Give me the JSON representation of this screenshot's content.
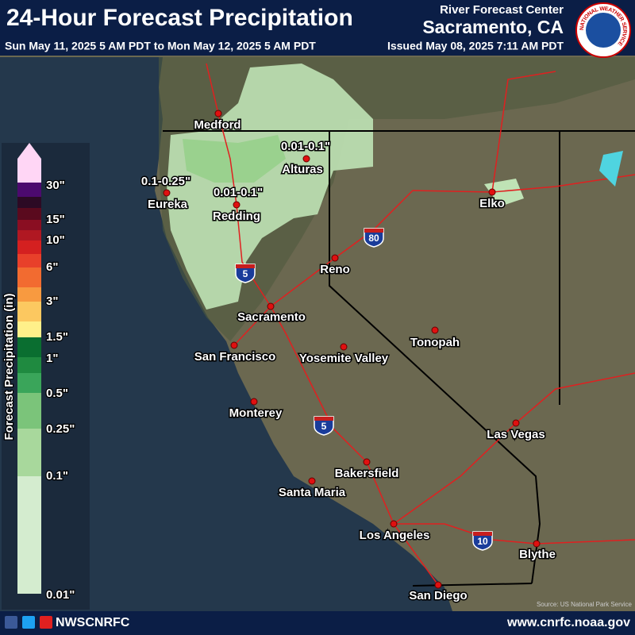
{
  "header": {
    "title": "24-Hour Forecast Precipitation",
    "period": "Sun May 11, 2025 5 AM PDT to Mon May 12, 2025 5 AM PDT",
    "center": "River Forecast Center",
    "location": "Sacramento, CA",
    "issued": "Issued May 08, 2025 7:11 AM PDT",
    "logo_text": "NATIONAL WEATHER SERVICE"
  },
  "legend": {
    "title": "Forecast Precipitation (in)",
    "ticks": [
      "30\"",
      "15\"",
      "10\"",
      "6\"",
      "3\"",
      "1.5\"",
      "1\"",
      "0.5\"",
      "0.25\"",
      "0.1\"",
      "0.01\""
    ]
  },
  "map": {
    "cities": [
      "Medford",
      "Eureka",
      "Redding",
      "Alturas",
      "Elko",
      "Reno",
      "Sacramento",
      "San Francisco",
      "Yosemite Valley",
      "Tonopah",
      "Monterey",
      "Las Vegas",
      "Bakersfield",
      "Santa Maria",
      "Los Angeles",
      "Blythe",
      "San Diego"
    ],
    "amounts": [
      "0.01-0.1\"",
      "0.1-0.25\"",
      "0.01-0.1\""
    ],
    "shields": [
      "5",
      "80",
      "5",
      "10"
    ],
    "source": "Source: US National Park Service"
  },
  "footer": {
    "handle": "NWSCNRFC",
    "url": "www.cnrfc.noaa.gov"
  }
}
